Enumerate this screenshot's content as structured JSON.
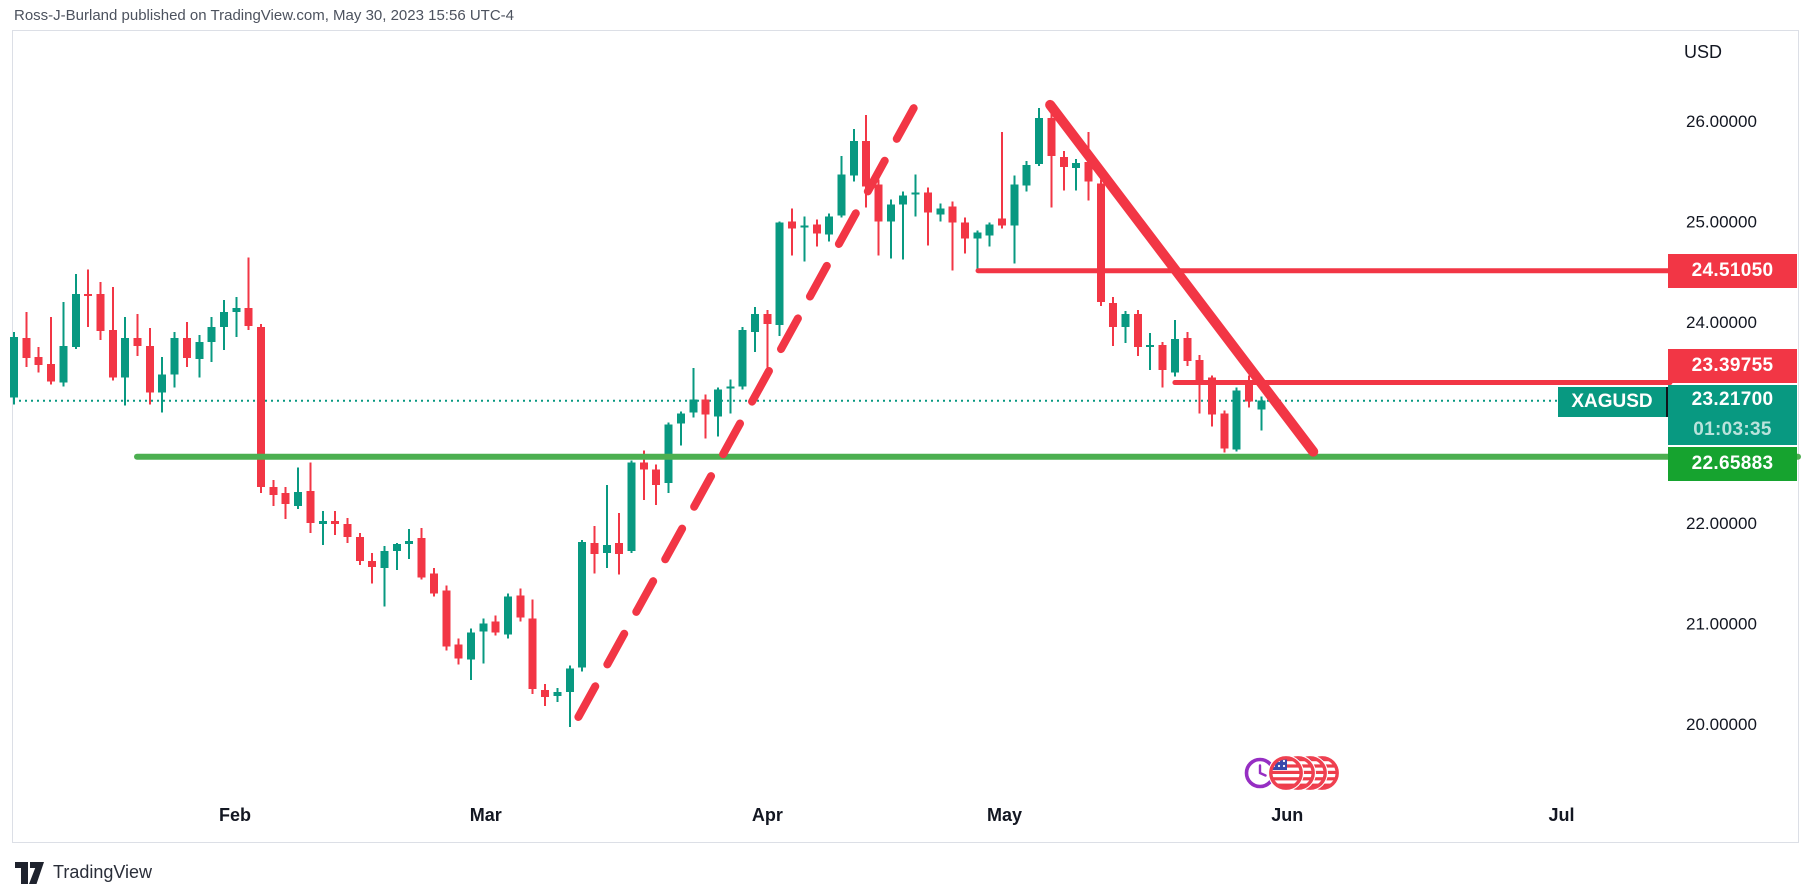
{
  "header": {
    "title": "Ross-J-Burland published on TradingView.com, May 30, 2023 15:56 UTC-4"
  },
  "footer": {
    "logo_text": "TradingView"
  },
  "price_axis": {
    "currency": "USD",
    "ticks": [
      {
        "label": "26.00000",
        "price": 26.0
      },
      {
        "label": "25.00000",
        "price": 25.0
      },
      {
        "label": "24.00000",
        "price": 24.0
      },
      {
        "label": "22.00000",
        "price": 22.0
      },
      {
        "label": "21.00000",
        "price": 21.0
      },
      {
        "label": "20.00000",
        "price": 20.0
      }
    ],
    "badges": [
      {
        "id": "resistance-upper",
        "label": "24.51050",
        "price": 24.5105,
        "color": "#f23645"
      },
      {
        "id": "resistance-lower",
        "label": "23.39755",
        "price": 23.39755,
        "color": "#f23645"
      },
      {
        "id": "support",
        "label": "22.65883",
        "price": 22.65883,
        "color": "#16a32f"
      }
    ],
    "current": {
      "symbol": "XAGUSD",
      "label": "23.21700",
      "price": 23.217,
      "countdown": "01:03:35",
      "color": "#089981"
    }
  },
  "time_axis": {
    "months": [
      {
        "label": "Feb",
        "bar": 17.9
      },
      {
        "label": "Mar",
        "bar": 38.2
      },
      {
        "label": "Apr",
        "bar": 61.0
      },
      {
        "label": "May",
        "bar": 80.2
      },
      {
        "label": "Jun",
        "bar": 103.1
      },
      {
        "label": "Jul",
        "bar": 125.3
      }
    ]
  },
  "chart_data": {
    "type": "candlestick",
    "symbol": "XAGUSD",
    "currency": "USD",
    "title": "Silver / U.S. Dollar daily candles, Jan-May 2023",
    "up_color": "#089981",
    "down_color": "#f23645",
    "ylim": [
      19.6,
      26.9
    ],
    "grid": false,
    "candles": [
      [
        23.25,
        23.9,
        23.18,
        23.85
      ],
      [
        23.84,
        24.1,
        23.55,
        23.64
      ],
      [
        23.65,
        23.75,
        23.5,
        23.57
      ],
      [
        23.58,
        24.05,
        23.38,
        23.41
      ],
      [
        23.4,
        24.2,
        23.36,
        23.76
      ],
      [
        23.75,
        24.48,
        23.73,
        24.28
      ],
      [
        24.28,
        24.52,
        23.95,
        24.26
      ],
      [
        24.28,
        24.4,
        23.82,
        23.91
      ],
      [
        23.92,
        24.35,
        23.42,
        23.45
      ],
      [
        23.45,
        24.05,
        23.17,
        23.84
      ],
      [
        23.84,
        24.08,
        23.66,
        23.76
      ],
      [
        23.76,
        23.94,
        23.18,
        23.3
      ],
      [
        23.3,
        23.65,
        23.1,
        23.48
      ],
      [
        23.48,
        23.9,
        23.35,
        23.84
      ],
      [
        23.84,
        24.0,
        23.55,
        23.64
      ],
      [
        23.63,
        23.87,
        23.45,
        23.8
      ],
      [
        23.8,
        24.05,
        23.6,
        23.95
      ],
      [
        23.95,
        24.22,
        23.72,
        24.1
      ],
      [
        24.1,
        24.25,
        23.85,
        24.14
      ],
      [
        24.14,
        24.64,
        23.92,
        23.96
      ],
      [
        23.95,
        23.98,
        22.3,
        22.36
      ],
      [
        22.36,
        22.43,
        22.17,
        22.28
      ],
      [
        22.3,
        22.36,
        22.04,
        22.19
      ],
      [
        22.17,
        22.55,
        22.14,
        22.31
      ],
      [
        22.32,
        22.6,
        21.9,
        22.0
      ],
      [
        21.99,
        22.12,
        21.78,
        22.02
      ],
      [
        22.02,
        22.12,
        21.88,
        21.99
      ],
      [
        21.99,
        22.05,
        21.8,
        21.86
      ],
      [
        21.86,
        21.9,
        21.58,
        21.62
      ],
      [
        21.62,
        21.7,
        21.4,
        21.56
      ],
      [
        21.55,
        21.77,
        21.17,
        21.72
      ],
      [
        21.72,
        21.8,
        21.53,
        21.79
      ],
      [
        21.79,
        21.94,
        21.64,
        21.82
      ],
      [
        21.85,
        21.95,
        21.44,
        21.46
      ],
      [
        21.5,
        21.55,
        21.27,
        21.3
      ],
      [
        21.33,
        21.38,
        20.73,
        20.77
      ],
      [
        20.79,
        20.85,
        20.59,
        20.65
      ],
      [
        20.64,
        20.95,
        20.44,
        20.91
      ],
      [
        20.92,
        21.05,
        20.6,
        21.0
      ],
      [
        21.02,
        21.08,
        20.88,
        20.91
      ],
      [
        20.89,
        21.3,
        20.85,
        21.27
      ],
      [
        21.28,
        21.35,
        21.02,
        21.06
      ],
      [
        21.05,
        21.24,
        20.3,
        20.35
      ],
      [
        20.34,
        20.4,
        20.18,
        20.27
      ],
      [
        20.28,
        20.36,
        20.22,
        20.32
      ],
      [
        20.32,
        20.58,
        19.97,
        20.55
      ],
      [
        20.56,
        21.83,
        20.52,
        21.81
      ],
      [
        21.8,
        21.97,
        21.5,
        21.69
      ],
      [
        21.7,
        22.38,
        21.55,
        21.78
      ],
      [
        21.8,
        22.1,
        21.49,
        21.69
      ],
      [
        21.72,
        22.62,
        21.7,
        22.6
      ],
      [
        22.6,
        22.72,
        22.23,
        22.53
      ],
      [
        22.53,
        22.58,
        22.18,
        22.38
      ],
      [
        22.4,
        23.0,
        22.3,
        22.98
      ],
      [
        22.99,
        23.11,
        22.77,
        23.09
      ],
      [
        23.1,
        23.54,
        23.05,
        23.23
      ],
      [
        23.23,
        23.28,
        22.84,
        23.08
      ],
      [
        23.06,
        23.35,
        22.86,
        23.33
      ],
      [
        23.34,
        23.43,
        23.09,
        23.36
      ],
      [
        23.36,
        23.95,
        23.33,
        23.92
      ],
      [
        23.9,
        24.15,
        23.7,
        24.08
      ],
      [
        24.08,
        24.12,
        23.52,
        23.98
      ],
      [
        23.97,
        25.0,
        23.86,
        24.99
      ],
      [
        25.0,
        25.13,
        24.66,
        24.93
      ],
      [
        24.94,
        25.05,
        24.6,
        24.96
      ],
      [
        24.97,
        25.02,
        24.75,
        24.88
      ],
      [
        24.87,
        25.08,
        24.8,
        25.05
      ],
      [
        25.06,
        25.65,
        25.04,
        25.47
      ],
      [
        25.46,
        25.92,
        25.4,
        25.8
      ],
      [
        25.8,
        26.06,
        25.14,
        25.35
      ],
      [
        25.37,
        25.42,
        24.66,
        25.0
      ],
      [
        25.0,
        25.22,
        24.63,
        25.17
      ],
      [
        25.17,
        25.3,
        24.62,
        25.26
      ],
      [
        25.27,
        25.47,
        25.05,
        25.29
      ],
      [
        25.29,
        25.34,
        24.76,
        25.09
      ],
      [
        25.07,
        25.18,
        25.0,
        25.13
      ],
      [
        25.15,
        25.2,
        24.51,
        24.99
      ],
      [
        24.99,
        25.04,
        24.68,
        24.83
      ],
      [
        24.83,
        24.91,
        24.52,
        24.89
      ],
      [
        24.86,
        24.99,
        24.75,
        24.97
      ],
      [
        25.03,
        25.89,
        24.93,
        24.96
      ],
      [
        24.96,
        25.46,
        24.58,
        25.37
      ],
      [
        25.36,
        25.6,
        25.3,
        25.56
      ],
      [
        25.57,
        26.13,
        25.55,
        26.03
      ],
      [
        26.03,
        26.08,
        25.14,
        25.65
      ],
      [
        25.64,
        25.7,
        25.31,
        25.54
      ],
      [
        25.53,
        25.62,
        25.31,
        25.58
      ],
      [
        25.59,
        25.89,
        25.21,
        25.4
      ],
      [
        25.38,
        25.42,
        24.16,
        24.2
      ],
      [
        24.19,
        24.25,
        23.76,
        23.95
      ],
      [
        23.95,
        24.11,
        23.79,
        24.08
      ],
      [
        24.08,
        24.12,
        23.66,
        23.75
      ],
      [
        23.75,
        23.89,
        23.52,
        23.77
      ],
      [
        23.77,
        23.8,
        23.35,
        23.52
      ],
      [
        23.5,
        24.02,
        23.46,
        23.83
      ],
      [
        23.84,
        23.9,
        23.56,
        23.61
      ],
      [
        23.62,
        23.67,
        23.09,
        23.4
      ],
      [
        23.45,
        23.47,
        22.96,
        23.08
      ],
      [
        23.09,
        23.12,
        22.7,
        22.74
      ],
      [
        22.73,
        23.35,
        22.71,
        23.32
      ],
      [
        23.4,
        23.47,
        23.15,
        23.21
      ],
      [
        23.13,
        23.26,
        22.92,
        23.22
      ]
    ],
    "levels": [
      {
        "name": "resistance-upper-line",
        "price": 24.5105,
        "from_bar": 78.06,
        "color": "#f23645",
        "width": 5,
        "style": "solid"
      },
      {
        "name": "resistance-lower-line",
        "price": 23.39755,
        "from_bar": 94.0,
        "color": "#f23645",
        "width": 5,
        "style": "solid"
      },
      {
        "name": "support-line",
        "price": 22.65883,
        "from_bar": 9.96,
        "color": "#4caf50",
        "width": 6,
        "style": "solid"
      },
      {
        "name": "current-price-line",
        "price": 23.217,
        "from_bar": 0,
        "color": "#089981",
        "width": 2,
        "style": "dotted"
      }
    ],
    "trendlines": [
      {
        "name": "ascending-dashed-trendline",
        "from": {
          "bar": 45.7,
          "price": 20.07
        },
        "to": {
          "bar": 73.8,
          "price": 26.34
        },
        "style": "dashed",
        "color": "#f23645",
        "width": 8
      },
      {
        "name": "descending-solid-trendline",
        "from": {
          "bar": 83.9,
          "price": 26.16
        },
        "to": {
          "bar": 105.2,
          "price": 22.71
        },
        "style": "solid",
        "color": "#f23645",
        "width": 10
      }
    ],
    "events": {
      "icons": [
        "clock-icon",
        "us-flag-icon",
        "us-flag-icon",
        "us-flag-icon",
        "us-flag-icon"
      ]
    }
  }
}
